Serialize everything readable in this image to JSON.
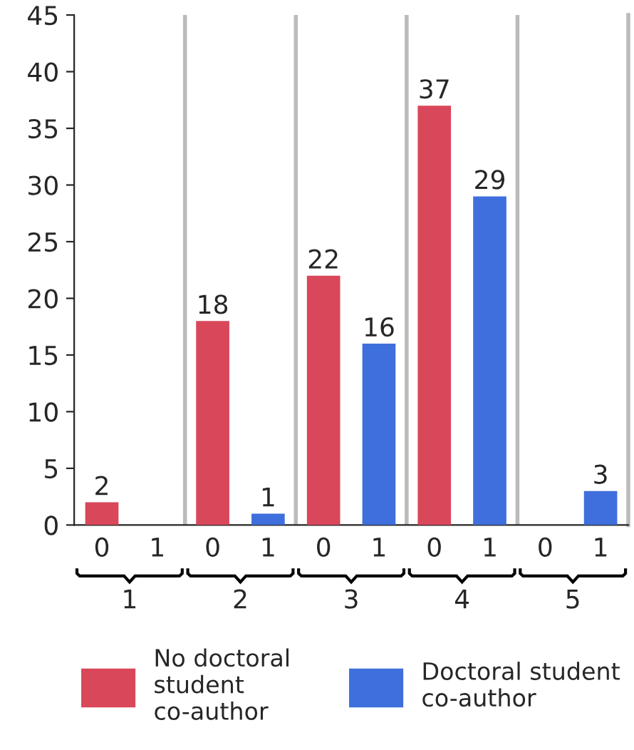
{
  "chart_data": {
    "type": "bar",
    "categories": [
      "0",
      "1",
      "0",
      "1",
      "0",
      "1",
      "0",
      "1",
      "0",
      "1"
    ],
    "series": [
      {
        "name": "No doctoral\nstudent\nco-author",
        "color": "#d9475a",
        "values": [
          2,
          null,
          18,
          null,
          22,
          null,
          37,
          null,
          null,
          null
        ],
        "value_labels": [
          "2",
          null,
          "18",
          null,
          "22",
          null,
          "37",
          null,
          null,
          null
        ]
      },
      {
        "name": "Doctoral student\nco-author",
        "color": "#3f6fdc",
        "values": [
          null,
          null,
          null,
          1,
          null,
          16,
          null,
          29,
          null,
          3
        ],
        "value_labels": [
          null,
          null,
          null,
          "1",
          null,
          "16",
          null,
          "29",
          null,
          "3"
        ]
      }
    ],
    "annotations": [
      "1",
      "2",
      "3",
      "4",
      "5"
    ],
    "ylim": [
      0,
      45
    ],
    "yticks": [
      0,
      5,
      10,
      15,
      20,
      25,
      30,
      35,
      40,
      45
    ],
    "grid": false,
    "legend": "bottom"
  }
}
